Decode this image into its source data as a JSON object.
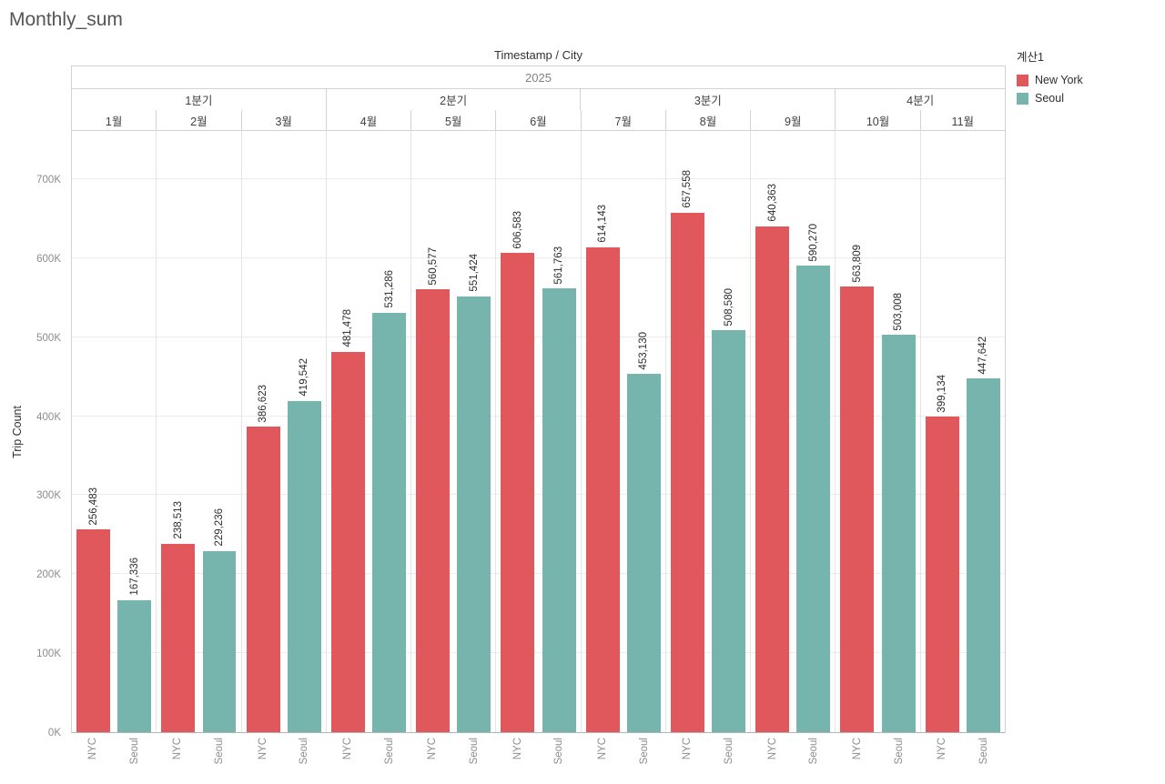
{
  "title": "Monthly_sum",
  "header": {
    "column_field": "Timestamp / City",
    "year": "2025"
  },
  "y_axis": {
    "title": "Trip Count"
  },
  "legend": {
    "title": "계산1",
    "items": [
      {
        "label": "New York",
        "color": "#e0585c"
      },
      {
        "label": "Seoul",
        "color": "#76b5ae"
      }
    ]
  },
  "chart_data": {
    "type": "bar",
    "title": "Monthly_sum",
    "column_header": "Timestamp / City",
    "year": "2025",
    "quarters": [
      {
        "label": "1분기",
        "months": 3
      },
      {
        "label": "2분기",
        "months": 3
      },
      {
        "label": "3분기",
        "months": 3
      },
      {
        "label": "4분기",
        "months": 2
      }
    ],
    "categories": [
      "1월",
      "2월",
      "3월",
      "4월",
      "5월",
      "6월",
      "7월",
      "8월",
      "9월",
      "10월",
      "11월"
    ],
    "series": [
      {
        "name": "New York",
        "axis_label": "NYC",
        "color": "#e0585c",
        "values": [
          256483,
          238513,
          386623,
          481478,
          560577,
          606583,
          614143,
          657558,
          640363,
          563809,
          399134
        ],
        "labels": [
          "256,483",
          "238,513",
          "386,623",
          "481,478",
          "560,577",
          "606,583",
          "614,143",
          "657,558",
          "640,363",
          "563,809",
          "399,134"
        ]
      },
      {
        "name": "Seoul",
        "axis_label": "Seoul",
        "color": "#76b5ae",
        "values": [
          167336,
          229236,
          419542,
          531286,
          551424,
          561763,
          453130,
          508580,
          590270,
          503008,
          447642
        ],
        "labels": [
          "167,336",
          "229,236",
          "419,542",
          "531,286",
          "551,424",
          "561,763",
          "453,130",
          "508,580",
          "590,270",
          "503,008",
          "447,642"
        ]
      }
    ],
    "ylabel": "Trip Count",
    "ylim": [
      0,
      700000
    ],
    "y_ticks": [
      {
        "value": 0,
        "label": "0K"
      },
      {
        "value": 100000,
        "label": "100K"
      },
      {
        "value": 200000,
        "label": "200K"
      },
      {
        "value": 300000,
        "label": "300K"
      },
      {
        "value": 400000,
        "label": "400K"
      },
      {
        "value": 500000,
        "label": "500K"
      },
      {
        "value": 600000,
        "label": "600K"
      },
      {
        "value": 700000,
        "label": "700K"
      }
    ],
    "grid": "horizontal",
    "legend_position": "top-right"
  }
}
